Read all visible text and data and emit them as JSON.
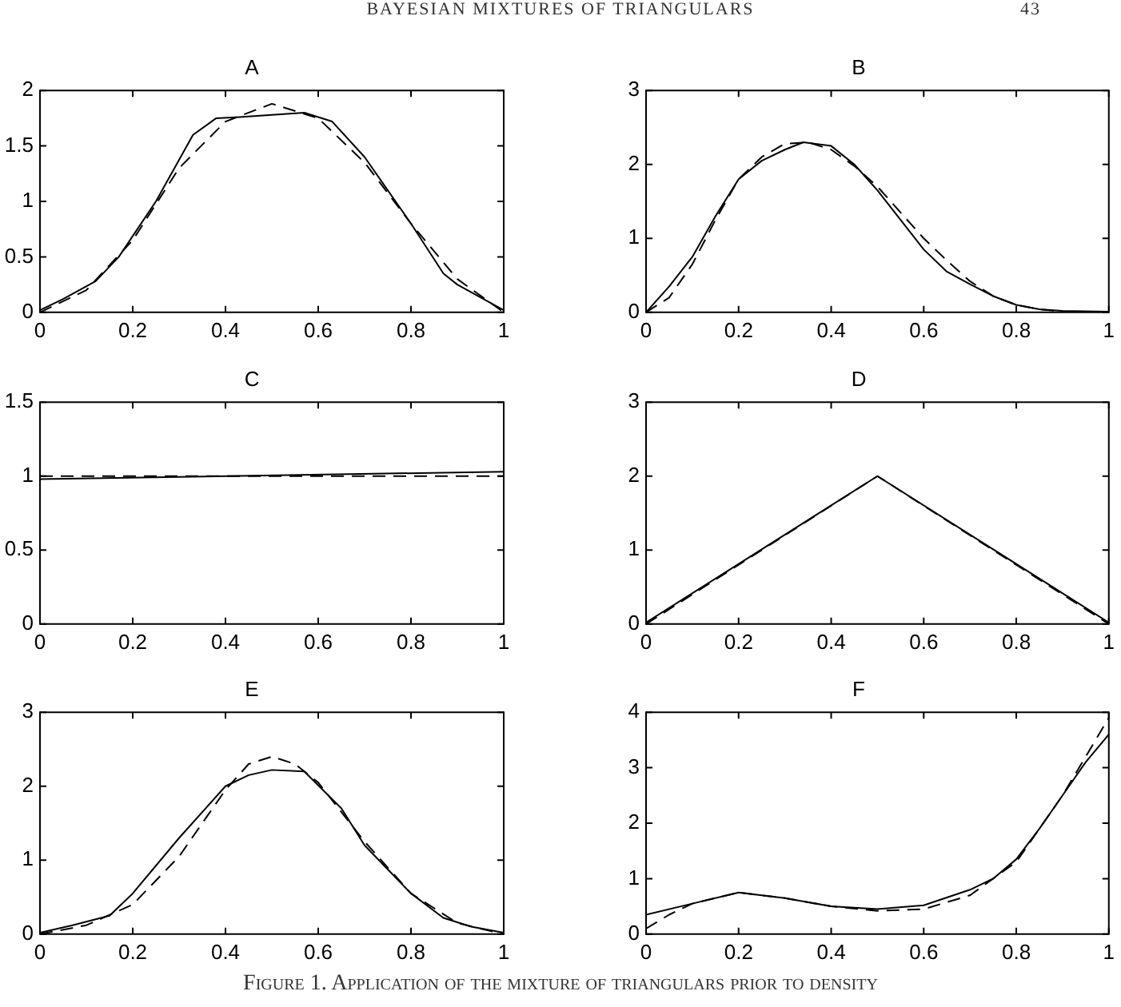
{
  "chart_data": [
    {
      "type": "line",
      "title": "A",
      "annotations": [
        "BAYESIAN MIXTURES OF TRIANGULARS",
        "43"
      ],
      "xlim": [
        0,
        1
      ],
      "xticks": [
        0,
        0.2,
        0.4,
        0.6,
        0.8,
        1
      ],
      "ylim": [
        0,
        2
      ],
      "yticks": [
        0,
        0.5,
        1,
        1.5,
        2
      ],
      "series": [
        {
          "color": "#000000",
          "line_style": "solid",
          "x": [
            0,
            0.05,
            0.12,
            0.17,
            0.25,
            0.33,
            0.38,
            0.43,
            0.5,
            0.57,
            0.63,
            0.7,
            0.8,
            0.87,
            0.9,
            1
          ],
          "values": [
            0.02,
            0.12,
            0.28,
            0.5,
            1.0,
            1.6,
            1.75,
            1.76,
            1.78,
            1.8,
            1.72,
            1.4,
            0.8,
            0.35,
            0.25,
            0.02
          ]
        },
        {
          "color": "#000000",
          "line_style": "dashed",
          "x": [
            0,
            0.1,
            0.2,
            0.3,
            0.4,
            0.5,
            0.6,
            0.7,
            0.8,
            0.9,
            1
          ],
          "values": [
            0,
            0.2,
            0.65,
            1.3,
            1.72,
            1.88,
            1.75,
            1.35,
            0.8,
            0.3,
            0
          ]
        }
      ]
    },
    {
      "type": "line",
      "title": "B",
      "xlim": [
        0,
        1
      ],
      "xticks": [
        0,
        0.2,
        0.4,
        0.6,
        0.8,
        1
      ],
      "ylim": [
        0,
        3
      ],
      "yticks": [
        0,
        1,
        2,
        3
      ],
      "series": [
        {
          "color": "#000000",
          "line_style": "solid",
          "x": [
            0,
            0.05,
            0.1,
            0.15,
            0.2,
            0.25,
            0.3,
            0.34,
            0.4,
            0.45,
            0.5,
            0.55,
            0.6,
            0.65,
            0.7,
            0.75,
            0.8,
            0.85,
            0.9,
            1
          ],
          "values": [
            0,
            0.35,
            0.75,
            1.3,
            1.8,
            2.05,
            2.2,
            2.3,
            2.25,
            2.0,
            1.65,
            1.25,
            0.85,
            0.55,
            0.38,
            0.22,
            0.1,
            0.04,
            0.02,
            0.01
          ]
        },
        {
          "color": "#000000",
          "line_style": "dashed",
          "x": [
            0,
            0.05,
            0.1,
            0.15,
            0.2,
            0.25,
            0.3,
            0.35,
            0.4,
            0.45,
            0.5,
            0.55,
            0.6,
            0.65,
            0.7,
            0.75,
            0.8,
            0.85,
            0.9,
            1
          ],
          "values": [
            0,
            0.2,
            0.65,
            1.25,
            1.8,
            2.1,
            2.28,
            2.3,
            2.2,
            1.98,
            1.7,
            1.35,
            1.0,
            0.7,
            0.42,
            0.22,
            0.1,
            0.04,
            0.01,
            0
          ]
        }
      ]
    },
    {
      "type": "line",
      "title": "C",
      "xlim": [
        0,
        1
      ],
      "xticks": [
        0,
        0.2,
        0.4,
        0.6,
        0.8,
        1
      ],
      "ylim": [
        0,
        1.5
      ],
      "yticks": [
        0,
        0.5,
        1,
        1.5
      ],
      "series": [
        {
          "color": "#000000",
          "line_style": "solid",
          "x": [
            0,
            1
          ],
          "values": [
            0.98,
            1.03
          ]
        },
        {
          "color": "#000000",
          "line_style": "dashed",
          "x": [
            0,
            1
          ],
          "values": [
            1.0,
            1.0
          ]
        }
      ]
    },
    {
      "type": "line",
      "title": "D",
      "xlim": [
        0,
        1
      ],
      "xticks": [
        0,
        0.2,
        0.4,
        0.6,
        0.8,
        1
      ],
      "ylim": [
        0,
        3
      ],
      "yticks": [
        0,
        1,
        2,
        3
      ],
      "series": [
        {
          "color": "#000000",
          "line_style": "solid",
          "x": [
            0,
            0.5,
            1
          ],
          "values": [
            0.02,
            2.0,
            0.02
          ]
        },
        {
          "color": "#000000",
          "line_style": "dashed",
          "x": [
            0,
            0.5,
            1
          ],
          "values": [
            0,
            2.0,
            0
          ]
        }
      ]
    },
    {
      "type": "line",
      "title": "E",
      "xlim": [
        0,
        1
      ],
      "xticks": [
        0,
        0.2,
        0.4,
        0.6,
        0.8,
        1
      ],
      "ylim": [
        0,
        3
      ],
      "yticks": [
        0,
        1,
        2,
        3
      ],
      "series": [
        {
          "color": "#000000",
          "line_style": "solid",
          "x": [
            0,
            0.07,
            0.15,
            0.2,
            0.3,
            0.4,
            0.45,
            0.5,
            0.57,
            0.65,
            0.7,
            0.8,
            0.87,
            0.93,
            1
          ],
          "values": [
            0.02,
            0.12,
            0.25,
            0.55,
            1.3,
            2.0,
            2.15,
            2.22,
            2.2,
            1.7,
            1.2,
            0.55,
            0.22,
            0.1,
            0.02
          ]
        },
        {
          "color": "#000000",
          "line_style": "dashed",
          "x": [
            0,
            0.1,
            0.2,
            0.3,
            0.4,
            0.45,
            0.5,
            0.55,
            0.6,
            0.7,
            0.8,
            0.9,
            1
          ],
          "values": [
            0,
            0.12,
            0.4,
            1.05,
            1.95,
            2.3,
            2.4,
            2.3,
            2.05,
            1.25,
            0.55,
            0.15,
            0
          ]
        }
      ]
    },
    {
      "type": "line",
      "title": "F",
      "annotations": [
        "Figure 1. Application of the mixture of triangulars prior to density"
      ],
      "xlim": [
        0,
        1
      ],
      "xticks": [
        0,
        0.2,
        0.4,
        0.6,
        0.8,
        1
      ],
      "ylim": [
        0,
        4
      ],
      "yticks": [
        0,
        1,
        2,
        3,
        4
      ],
      "series": [
        {
          "color": "#000000",
          "line_style": "solid",
          "x": [
            0,
            0.1,
            0.2,
            0.3,
            0.4,
            0.5,
            0.6,
            0.7,
            0.75,
            0.8,
            0.85,
            0.9,
            0.95,
            1
          ],
          "values": [
            0.35,
            0.55,
            0.75,
            0.65,
            0.5,
            0.45,
            0.52,
            0.8,
            1.0,
            1.35,
            1.9,
            2.5,
            3.1,
            3.6
          ]
        },
        {
          "color": "#000000",
          "line_style": "dashed",
          "x": [
            0,
            0.05,
            0.1,
            0.2,
            0.3,
            0.4,
            0.5,
            0.6,
            0.7,
            0.8,
            0.9,
            0.95,
            1
          ],
          "values": [
            0.1,
            0.35,
            0.55,
            0.75,
            0.65,
            0.5,
            0.42,
            0.45,
            0.7,
            1.3,
            2.5,
            3.2,
            3.9
          ]
        }
      ]
    }
  ]
}
